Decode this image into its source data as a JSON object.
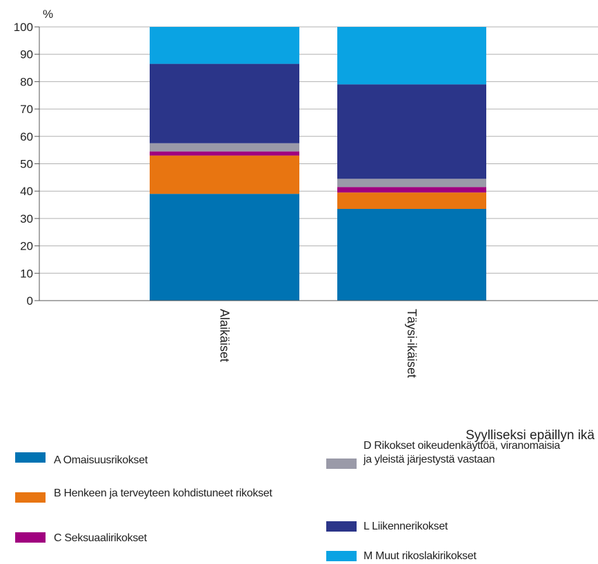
{
  "chart_data": {
    "type": "stacked_bar",
    "y_unit": "%",
    "x_axis_title": "Syylliseksi epäillyn ikä",
    "categories": [
      "Alaikäiset",
      "Täysi-ikäiset"
    ],
    "series": [
      {
        "name": "A Omaisuusrikokset",
        "color": "#0073b3",
        "values": [
          39,
          33.5
        ]
      },
      {
        "name": "B Henkeen ja terveyteen kohdistuneet rikokset",
        "color": "#e87511",
        "values": [
          14,
          6
        ]
      },
      {
        "name": "C Seksuaalirikokset",
        "color": "#a0007f",
        "values": [
          1.5,
          2
        ]
      },
      {
        "name": "D Rikokset oikeudenkäyttöä, viranomaisia ja yleistä järjestystä vastaan",
        "color": "#9a9aa8",
        "values": [
          3,
          3
        ]
      },
      {
        "name": "L Liikennerikokset",
        "color": "#2b3589",
        "values": [
          29,
          34.5
        ]
      },
      {
        "name": "M Muut rikoslakirikokset",
        "color": "#0aa3e3",
        "values": [
          13.5,
          21
        ]
      }
    ],
    "ylim": [
      0,
      100
    ],
    "yticks": [
      0,
      10,
      20,
      30,
      40,
      50,
      60,
      70,
      80,
      90,
      100
    ],
    "grid": true
  }
}
